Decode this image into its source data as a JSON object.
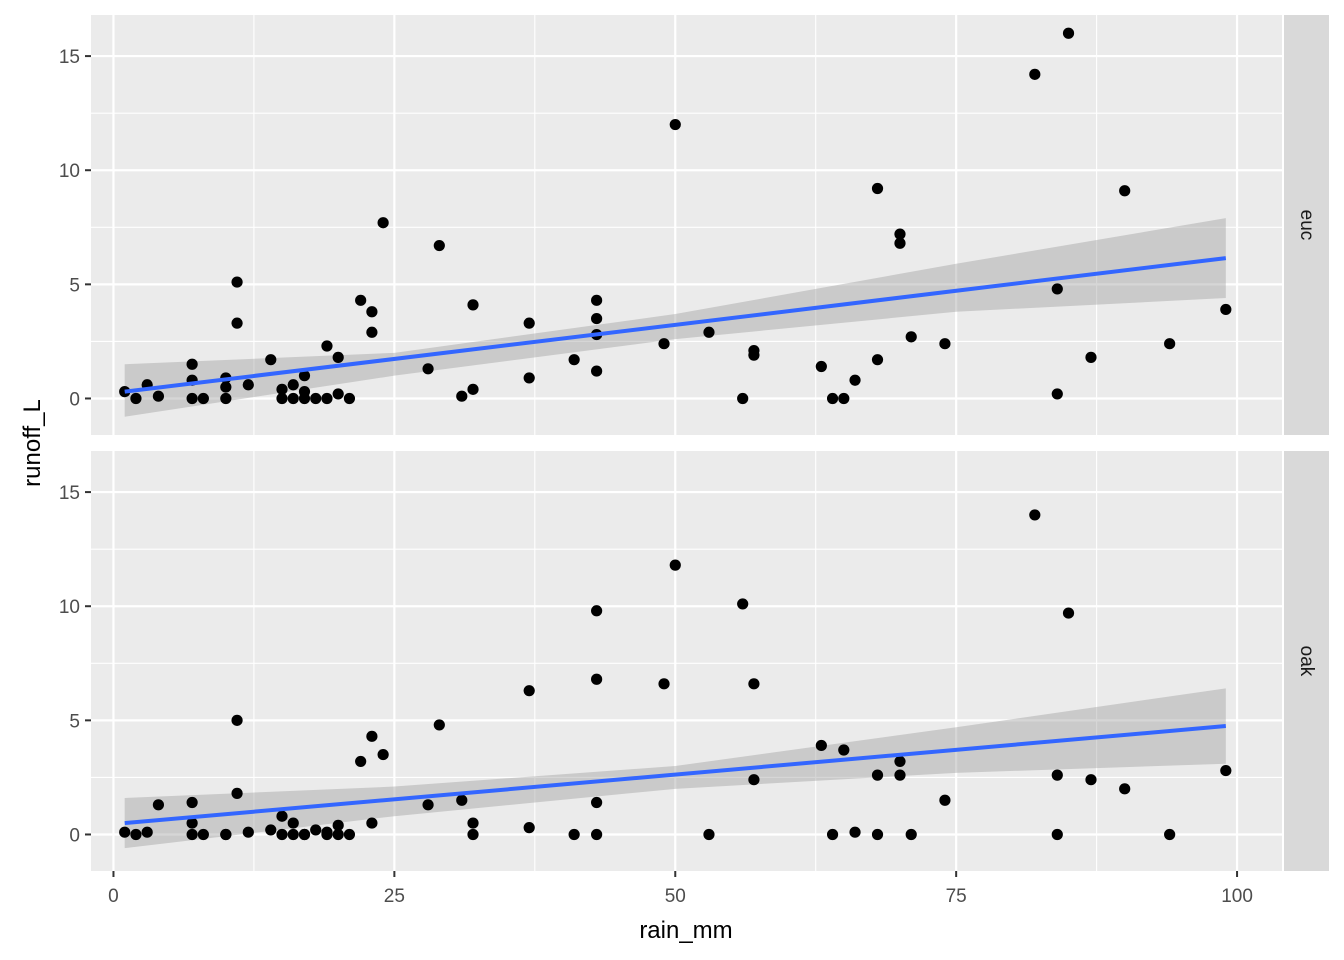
{
  "chart_data": {
    "type": "scatter",
    "subtype": "faceted scatter with linear fit and confidence band",
    "xlabel": "rain_mm",
    "ylabel": "runoff_L",
    "xlim": [
      -2,
      104
    ],
    "ylim": [
      -1.6,
      16.8
    ],
    "x_ticks": [
      0,
      25,
      50,
      75,
      100
    ],
    "x_tick_labels": [
      "0",
      "25",
      "50",
      "75",
      "100"
    ],
    "y_ticks": [
      0,
      5,
      10,
      15
    ],
    "y_tick_labels": [
      "0",
      "5",
      "10",
      "15"
    ],
    "grid": true,
    "colors": {
      "panel_bg": "#EBEBEB",
      "grid_major": "#FFFFFF",
      "strip_bg": "#D9D9D9",
      "points": "#000000",
      "fit_line": "#3366FF",
      "ribbon": "#999999"
    },
    "facets": [
      {
        "label": "euc",
        "points": [
          [
            1,
            0.3
          ],
          [
            2,
            0.0
          ],
          [
            3,
            0.6
          ],
          [
            4,
            0.1
          ],
          [
            7,
            1.5
          ],
          [
            7,
            0.8
          ],
          [
            7,
            0.0
          ],
          [
            8,
            0.0
          ],
          [
            10,
            0.9
          ],
          [
            10,
            0.5
          ],
          [
            10,
            0.0
          ],
          [
            11,
            5.1
          ],
          [
            11,
            3.3
          ],
          [
            12,
            0.6
          ],
          [
            14,
            1.7
          ],
          [
            15,
            0.4
          ],
          [
            15,
            0.0
          ],
          [
            16,
            0.6
          ],
          [
            16,
            0.0
          ],
          [
            17,
            1.0
          ],
          [
            17,
            0.3
          ],
          [
            17,
            0.0
          ],
          [
            18,
            0.0
          ],
          [
            19,
            2.3
          ],
          [
            19,
            0.0
          ],
          [
            20,
            1.8
          ],
          [
            20,
            0.2
          ],
          [
            21,
            0.0
          ],
          [
            22,
            4.3
          ],
          [
            23,
            3.8
          ],
          [
            23,
            2.9
          ],
          [
            24,
            7.7
          ],
          [
            28,
            1.3
          ],
          [
            29,
            6.7
          ],
          [
            31,
            0.1
          ],
          [
            32,
            4.1
          ],
          [
            32,
            0.4
          ],
          [
            37,
            3.3
          ],
          [
            37,
            0.9
          ],
          [
            41,
            1.7
          ],
          [
            43,
            4.3
          ],
          [
            43,
            3.5
          ],
          [
            43,
            2.8
          ],
          [
            43,
            1.2
          ],
          [
            49,
            2.4
          ],
          [
            50,
            12.0
          ],
          [
            53,
            2.9
          ],
          [
            56,
            0.0
          ],
          [
            57,
            2.1
          ],
          [
            57,
            1.9
          ],
          [
            63,
            1.4
          ],
          [
            64,
            0.0
          ],
          [
            65,
            0.0
          ],
          [
            66,
            0.8
          ],
          [
            68,
            9.2
          ],
          [
            68,
            1.7
          ],
          [
            70,
            7.2
          ],
          [
            70,
            6.8
          ],
          [
            71,
            2.7
          ],
          [
            74,
            2.4
          ],
          [
            82,
            14.2
          ],
          [
            84,
            4.8
          ],
          [
            84,
            0.2
          ],
          [
            85,
            16.0
          ],
          [
            87,
            1.8
          ],
          [
            90,
            9.1
          ],
          [
            94,
            2.4
          ],
          [
            99,
            3.9
          ]
        ],
        "fit": {
          "x": [
            1,
            99
          ],
          "y": [
            0.3,
            6.15
          ]
        },
        "ci_lower": [
          [
            1,
            -0.8
          ],
          [
            25,
            1.0
          ],
          [
            50,
            2.6
          ],
          [
            75,
            3.8
          ],
          [
            99,
            4.4
          ]
        ],
        "ci_upper": [
          [
            1,
            1.5
          ],
          [
            25,
            2.0
          ],
          [
            50,
            3.7
          ],
          [
            75,
            5.9
          ],
          [
            99,
            7.9
          ]
        ]
      },
      {
        "label": "oak",
        "points": [
          [
            1,
            0.1
          ],
          [
            2,
            0.0
          ],
          [
            3,
            0.1
          ],
          [
            4,
            1.3
          ],
          [
            7,
            1.4
          ],
          [
            7,
            0.5
          ],
          [
            7,
            0.0
          ],
          [
            8,
            0.0
          ],
          [
            10,
            0.0
          ],
          [
            10,
            0.0
          ],
          [
            11,
            5.0
          ],
          [
            11,
            1.8
          ],
          [
            12,
            0.1
          ],
          [
            14,
            0.2
          ],
          [
            15,
            0.8
          ],
          [
            15,
            0.0
          ],
          [
            16,
            0.5
          ],
          [
            16,
            0.0
          ],
          [
            17,
            0.0
          ],
          [
            17,
            0.0
          ],
          [
            18,
            0.2
          ],
          [
            19,
            0.1
          ],
          [
            19,
            0.0
          ],
          [
            20,
            0.4
          ],
          [
            20,
            0.0
          ],
          [
            21,
            0.0
          ],
          [
            22,
            3.2
          ],
          [
            23,
            4.3
          ],
          [
            23,
            0.5
          ],
          [
            24,
            3.5
          ],
          [
            28,
            1.3
          ],
          [
            29,
            4.8
          ],
          [
            31,
            1.5
          ],
          [
            32,
            0.5
          ],
          [
            32,
            0.0
          ],
          [
            37,
            6.3
          ],
          [
            37,
            0.3
          ],
          [
            41,
            0.0
          ],
          [
            43,
            9.8
          ],
          [
            43,
            6.8
          ],
          [
            43,
            1.4
          ],
          [
            43,
            0.0
          ],
          [
            49,
            6.6
          ],
          [
            50,
            11.8
          ],
          [
            53,
            0.0
          ],
          [
            56,
            10.1
          ],
          [
            57,
            6.6
          ],
          [
            57,
            2.4
          ],
          [
            63,
            3.9
          ],
          [
            64,
            0.0
          ],
          [
            65,
            3.7
          ],
          [
            66,
            0.1
          ],
          [
            68,
            2.6
          ],
          [
            68,
            0.0
          ],
          [
            70,
            3.2
          ],
          [
            70,
            2.6
          ],
          [
            71,
            0.0
          ],
          [
            74,
            1.5
          ],
          [
            82,
            14.0
          ],
          [
            84,
            2.6
          ],
          [
            84,
            0.0
          ],
          [
            85,
            9.7
          ],
          [
            87,
            2.4
          ],
          [
            90,
            2.0
          ],
          [
            94,
            0.0
          ],
          [
            99,
            2.8
          ]
        ],
        "fit": {
          "x": [
            1,
            99
          ],
          "y": [
            0.5,
            4.75
          ]
        },
        "ci_lower": [
          [
            1,
            -0.6
          ],
          [
            25,
            0.8
          ],
          [
            50,
            2.0
          ],
          [
            75,
            2.7
          ],
          [
            99,
            3.1
          ]
        ],
        "ci_upper": [
          [
            1,
            1.6
          ],
          [
            25,
            2.1
          ],
          [
            50,
            3.0
          ],
          [
            75,
            4.7
          ],
          [
            99,
            6.4
          ]
        ]
      }
    ]
  }
}
